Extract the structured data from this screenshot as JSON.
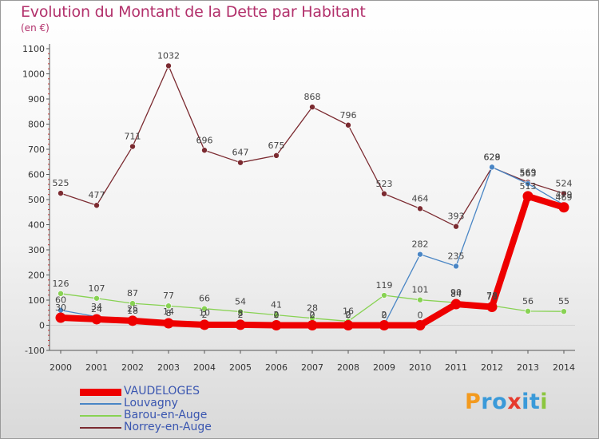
{
  "chart_data": {
    "type": "line",
    "title": "Evolution du Montant de la Dette par Habitant",
    "unit_label": "(en €)",
    "x": [
      "2000",
      "2001",
      "2002",
      "2003",
      "2004",
      "2005",
      "2006",
      "2007",
      "2008",
      "2009",
      "2010",
      "2011",
      "2012",
      "2013",
      "2014"
    ],
    "ylim": [
      -100,
      1100
    ],
    "yticks": [
      "-100",
      "0",
      "100",
      "200",
      "300",
      "400",
      "500",
      "600",
      "700",
      "800",
      "900",
      "1000",
      "1100"
    ],
    "grid": false,
    "series": [
      {
        "name": "VAUDELOGES",
        "color": "#ee0000",
        "values": [
          30,
          24,
          18,
          8,
          2,
          2,
          0,
          0,
          0,
          0,
          0,
          84,
          73,
          513,
          469
        ],
        "labels": [
          "30",
          "24",
          "18",
          "8",
          "2",
          "2",
          "0",
          "0",
          "0",
          "0",
          "0",
          "84",
          "73",
          "513",
          "469"
        ]
      },
      {
        "name": "Louvagny",
        "color": "#4a86c5",
        "values": [
          60,
          34,
          25,
          14,
          10,
          8,
          2,
          2,
          2,
          2,
          282,
          235,
          629,
          563,
          479
        ],
        "labels": [
          "60",
          "34",
          "25",
          "14",
          "10",
          "8",
          "2",
          "2",
          "2",
          "2",
          "282",
          "235",
          "629",
          "563",
          "479"
        ]
      },
      {
        "name": "Barou-en-Auge",
        "color": "#88d253",
        "values": [
          126,
          107,
          87,
          77,
          66,
          54,
          41,
          28,
          16,
          119,
          101,
          90,
          78,
          56,
          55
        ],
        "labels": [
          "126",
          "107",
          "87",
          "77",
          "66",
          "54",
          "41",
          "28",
          "16",
          "119",
          "101",
          "90",
          "78",
          "56",
          "55"
        ]
      },
      {
        "name": "Norrey-en-Auge",
        "color": "#7b2a30",
        "values": [
          525,
          477,
          711,
          1032,
          696,
          647,
          675,
          868,
          796,
          523,
          464,
          393,
          628,
          569,
          524
        ],
        "labels": [
          "525",
          "477",
          "711",
          "1032",
          "696",
          "647",
          "675",
          "868",
          "796",
          "523",
          "464",
          "393",
          "628",
          "569",
          "524"
        ]
      }
    ]
  },
  "legend": {
    "items": [
      "VAUDELOGES",
      "Louvagny",
      "Barou-en-Auge",
      "Norrey-en-Auge"
    ]
  },
  "logo": {
    "text": "Proxiti",
    "letters": [
      "P",
      "r",
      "o",
      "x",
      "i",
      "t",
      "i"
    ]
  }
}
